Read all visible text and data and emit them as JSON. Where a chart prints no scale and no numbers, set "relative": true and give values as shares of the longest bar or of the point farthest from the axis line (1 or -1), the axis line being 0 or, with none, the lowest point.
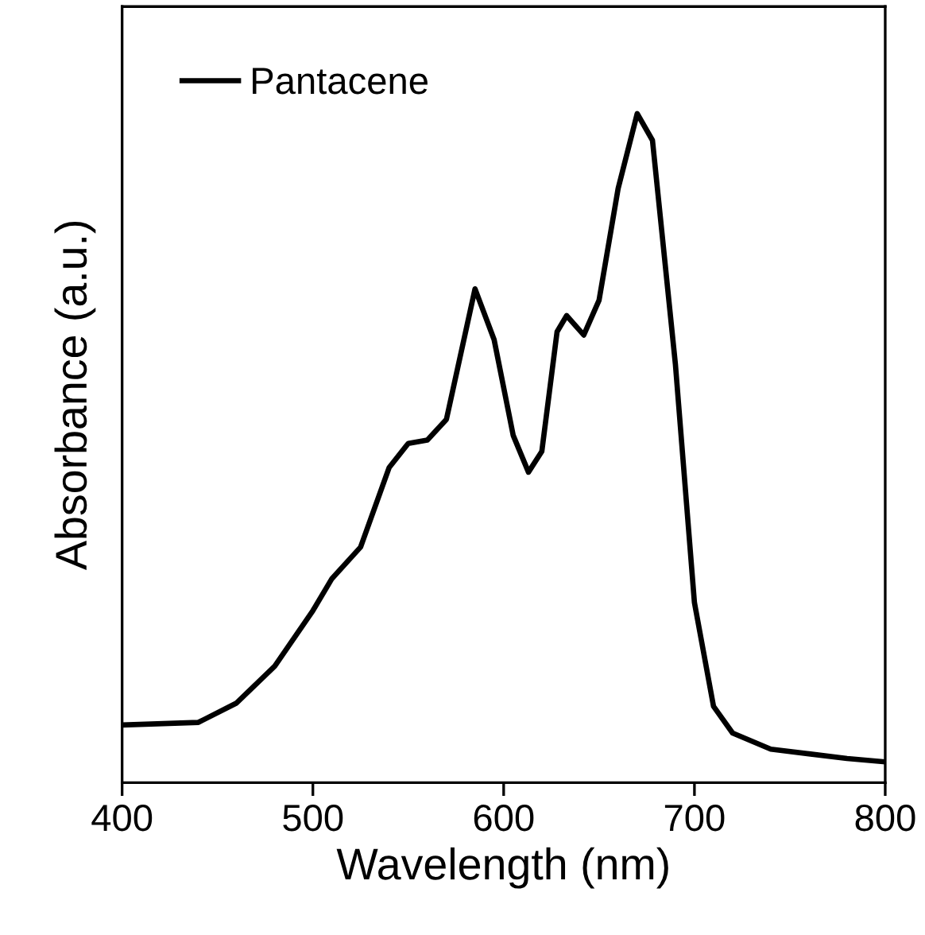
{
  "chart_data": {
    "type": "line",
    "relative": true,
    "xlabel": "Wavelength (nm)",
    "ylabel": "Absorbance (a.u.)",
    "xlim": [
      400,
      800
    ],
    "xticks": [
      400,
      500,
      600,
      700,
      800
    ],
    "legend": "top left",
    "grid": false,
    "tick_labels": "x",
    "series": [
      {
        "name": "Pantacene",
        "color": "#000000",
        "x": [
          400,
          440,
          460,
          480,
          500,
          510,
          525,
          540,
          550,
          560,
          570,
          585,
          595,
          605,
          613,
          620,
          628,
          633,
          642,
          650,
          660,
          670,
          678,
          690,
          700,
          710,
          720,
          740,
          760,
          780,
          800
        ],
        "values": [
          0.086,
          0.09,
          0.119,
          0.174,
          0.257,
          0.305,
          0.352,
          0.471,
          0.507,
          0.512,
          0.543,
          0.738,
          0.662,
          0.519,
          0.464,
          0.495,
          0.674,
          0.698,
          0.669,
          0.721,
          0.888,
          1,
          0.96,
          0.626,
          0.269,
          0.114,
          0.074,
          0.05,
          0.043,
          0.036,
          0.031
        ]
      }
    ]
  }
}
